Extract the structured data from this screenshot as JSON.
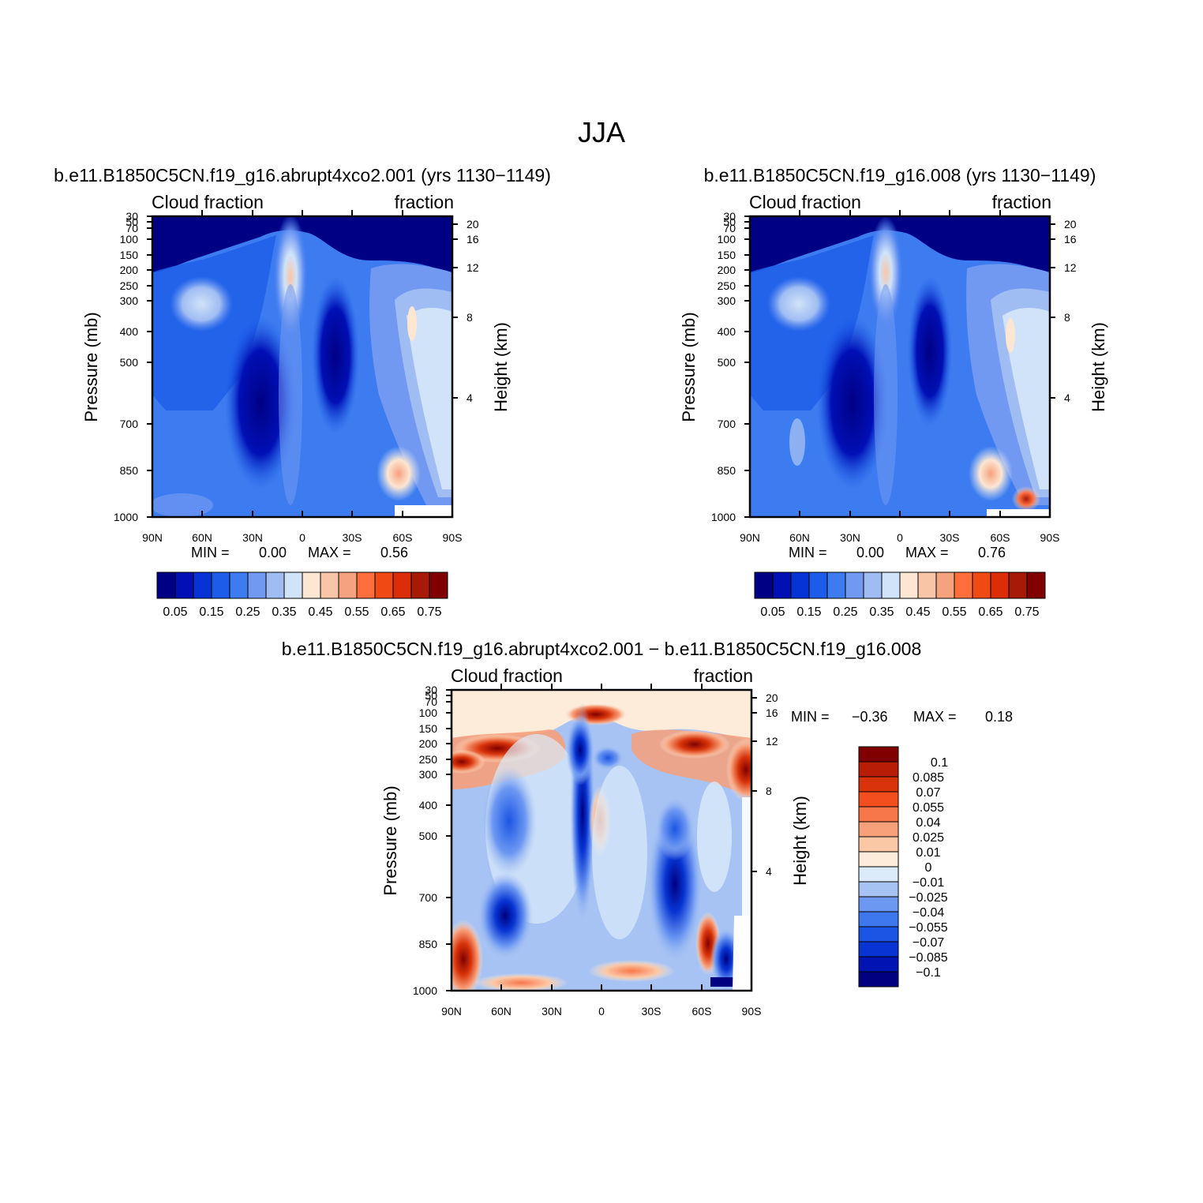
{
  "page": {
    "title": "JJA"
  },
  "colors": {
    "sequential_14": [
      "#000085",
      "#0010b5",
      "#0633d6",
      "#1c5ce8",
      "#3c7cf0",
      "#7199f2",
      "#a0bdf3",
      "#d0e3f8",
      "#fde6d2",
      "#f9c5a8",
      "#f5a27e",
      "#ff6e3b",
      "#f04a14",
      "#dc2d08",
      "#a81a08",
      "#800000"
    ],
    "diverging_16": [
      "#000080",
      "#0014b4",
      "#0734d2",
      "#1b55e4",
      "#3e78ef",
      "#6d98f2",
      "#a7c3f3",
      "#dcebf9",
      "#fdecda",
      "#fbc8a6",
      "#f7a07a",
      "#f7764a",
      "#f24e1e",
      "#d8330a",
      "#b71d07",
      "#800000"
    ]
  },
  "chart_data": [
    {
      "type": "heatmap",
      "title": "Cloud fraction",
      "title_right": "fraction",
      "subtitle": "b.e11.B1850C5CN.f19_g16.abrupt4xco2.001 (yrs 1130−1149)",
      "xlabel": "",
      "ylabel": "Pressure (mb)",
      "ylabel_right": "Height (km)",
      "x_ticks": [
        "90N",
        "60N",
        "30N",
        "0",
        "30S",
        "60S",
        "90S"
      ],
      "y_ticks": [
        "30",
        "50",
        "70",
        "100",
        "150",
        "200",
        "250",
        "300",
        "400",
        "500",
        "700",
        "850",
        "1000"
      ],
      "y_right_ticks": [
        "20",
        "16",
        "12",
        "8",
        "4"
      ],
      "stats": {
        "min_label": "MIN =",
        "min": "0.00",
        "max_label": "MAX =",
        "max": "0.56"
      },
      "colorbar": {
        "orientation": "horizontal",
        "labels": [
          "0.05",
          "0.15",
          "0.25",
          "0.35",
          "0.45",
          "0.55",
          "0.65",
          "0.75"
        ]
      }
    },
    {
      "type": "heatmap",
      "title": "Cloud fraction",
      "title_right": "fraction",
      "subtitle": "b.e11.B1850C5CN.f19_g16.008 (yrs 1130−1149)",
      "xlabel": "",
      "ylabel": "Pressure (mb)",
      "ylabel_right": "Height (km)",
      "x_ticks": [
        "90N",
        "60N",
        "30N",
        "0",
        "30S",
        "60S",
        "90S"
      ],
      "y_ticks": [
        "30",
        "50",
        "70",
        "100",
        "150",
        "200",
        "250",
        "300",
        "400",
        "500",
        "700",
        "850",
        "1000"
      ],
      "y_right_ticks": [
        "20",
        "16",
        "12",
        "8",
        "4"
      ],
      "stats": {
        "min_label": "MIN =",
        "min": "0.00",
        "max_label": "MAX =",
        "max": "0.76"
      },
      "colorbar": {
        "orientation": "horizontal",
        "labels": [
          "0.05",
          "0.15",
          "0.25",
          "0.35",
          "0.45",
          "0.55",
          "0.65",
          "0.75"
        ]
      }
    },
    {
      "type": "heatmap",
      "title": "Cloud fraction",
      "title_right": "fraction",
      "subtitle": "b.e11.B1850C5CN.f19_g16.abrupt4xco2.001 − b.e11.B1850C5CN.f19_g16.008",
      "xlabel": "",
      "ylabel": "Pressure (mb)",
      "ylabel_right": "Height (km)",
      "x_ticks": [
        "90N",
        "60N",
        "30N",
        "0",
        "30S",
        "60S",
        "90S"
      ],
      "y_ticks": [
        "30",
        "50",
        "70",
        "100",
        "150",
        "200",
        "250",
        "300",
        "400",
        "500",
        "700",
        "850",
        "1000"
      ],
      "y_right_ticks": [
        "20",
        "16",
        "12",
        "8",
        "4"
      ],
      "stats": {
        "min_label": "MIN =",
        "min": "−0.36",
        "max_label": "MAX =",
        "max": "0.18"
      },
      "colorbar": {
        "orientation": "vertical",
        "labels": [
          "0.1",
          "0.085",
          "0.07",
          "0.055",
          "0.04",
          "0.025",
          "0.01",
          "0",
          "−0.01",
          "−0.025",
          "−0.04",
          "−0.055",
          "−0.07",
          "−0.085",
          "−0.1"
        ]
      }
    }
  ]
}
